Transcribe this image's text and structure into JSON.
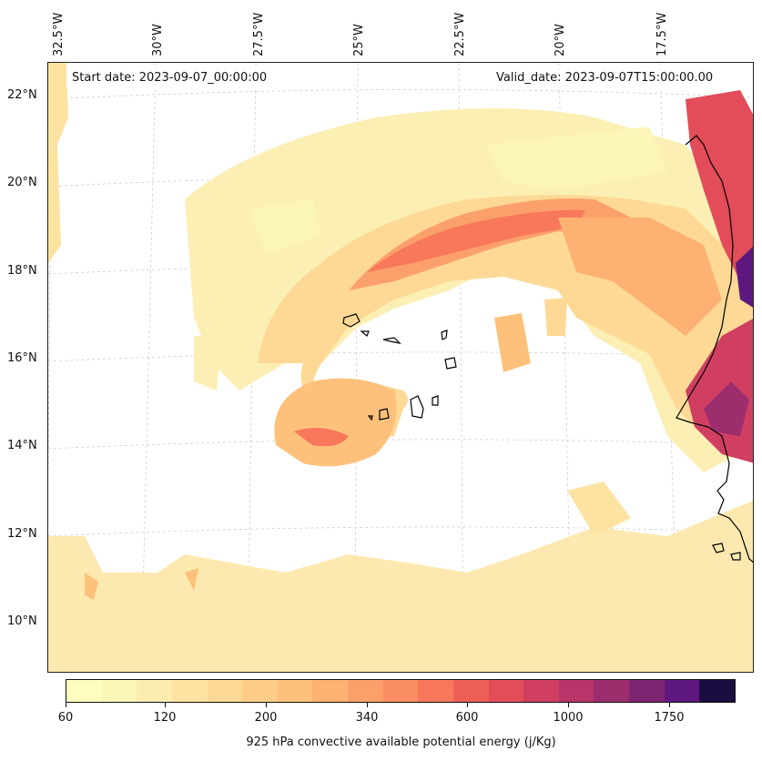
{
  "header": {
    "start_date": "Start date: 2023-09-07_00:00:00",
    "valid_date": "Valid_date: 2023-09-07T15:00:00.00"
  },
  "axes": {
    "longitude_labels": [
      "32.5°W",
      "30°W",
      "27.5°W",
      "25°W",
      "22.5°W",
      "20°W",
      "17.5°W"
    ],
    "latitude_labels": [
      "22°N",
      "20°N",
      "18°N",
      "16°N",
      "14°N",
      "12°N",
      "10°N"
    ]
  },
  "colorbar": {
    "title": "925 hPa convective available potential energy (j/Kg)",
    "tick_labels": [
      "60",
      "120",
      "200",
      "340",
      "600",
      "1000",
      "1750"
    ],
    "colors": [
      "#fcfdbf",
      "#fcf5b8",
      "#fcedaf",
      "#fde3a2",
      "#fdd995",
      "#fdcd88",
      "#fdc17c",
      "#fdb172",
      "#fca06b",
      "#fb8d62",
      "#f7785b",
      "#ee6057",
      "#e24d59",
      "#d03f61",
      "#b73569",
      "#9c2e6d",
      "#7f2470",
      "#5f187f",
      "#1b0c41"
    ]
  },
  "map": {
    "domain": "Eastern tropical North Atlantic / West African coast",
    "features": [
      "cyclonic CAPE spiral",
      "Cape Verde islands",
      "West African coastline"
    ],
    "gridlines": "dashed gray",
    "colors": {
      "land_outline": "#000000",
      "grid": "#c8c8c8"
    }
  }
}
